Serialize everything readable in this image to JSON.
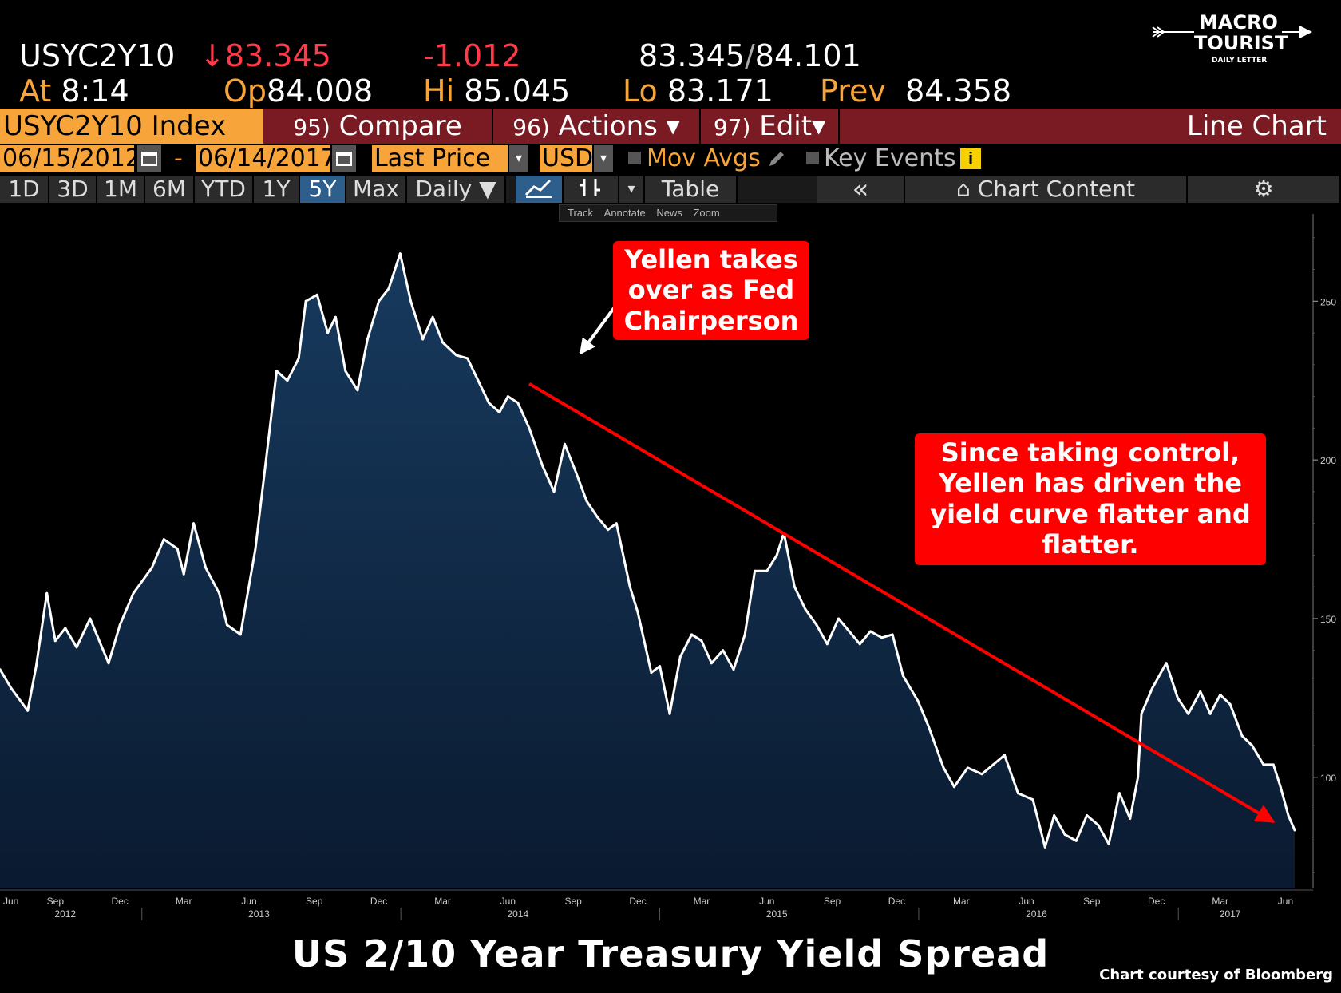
{
  "header": {
    "ticker": "USYC2Y10",
    "last_arrow": "↓",
    "last": "83.345",
    "change": "-1.012",
    "bid": "83.345",
    "ask": "84.101",
    "at_label": "At",
    "time": "8:14",
    "open_label": "Op",
    "open": "84.008",
    "high_label": "Hi",
    "high": "85.045",
    "low_label": "Lo",
    "low": "83.171",
    "prev_label": "Prev",
    "prev": "84.358"
  },
  "logo": {
    "line1": "MACRO",
    "line2": "TOURIST",
    "line3": "DAILY LETTER"
  },
  "command_bar": {
    "index": "USYC2Y10 Index",
    "compare_num": "95)",
    "compare": "Compare",
    "actions_num": "96)",
    "actions": "Actions",
    "edit_num": "97)",
    "edit": "Edit",
    "chart_type": "Line Chart",
    "dropdown": "▾"
  },
  "date_bar": {
    "start": "06/15/2012",
    "dash": "-",
    "end": "06/14/2017",
    "field": "Last Price",
    "currency": "USD",
    "mov_avgs": "Mov Avgs",
    "key_events": "Key Events",
    "info": "i"
  },
  "range_bar": {
    "ranges": [
      "1D",
      "3D",
      "1M",
      "6M",
      "YTD",
      "1Y",
      "5Y",
      "Max"
    ],
    "active": "5Y",
    "period": "Daily ▼",
    "table": "Table",
    "collapse": "«",
    "chart_content": "Chart Content",
    "settings": "⚙"
  },
  "mini_toolbar": {
    "track": "Track",
    "annotate": "Annotate",
    "news": "News",
    "zoom": "Zoom"
  },
  "colors": {
    "bloomberg_orange": "#f7a43a",
    "bar_red": "#7a1a23",
    "area_fill_top": "#173a5e",
    "area_fill_bottom": "#0a1a30",
    "line": "#ffffff",
    "callout": "#ff0000",
    "trend_arrow": "#ff0000",
    "down_color": "#ff3b4a"
  },
  "annotations": {
    "callout1": [
      "Yellen takes",
      "over as Fed",
      "Chairperson"
    ],
    "callout2": [
      "Since taking control,",
      "Yellen has driven the",
      "yield curve flatter and",
      "flatter."
    ]
  },
  "title": "US 2/10 Year Treasury Yield Spread",
  "credit": "Chart courtesy of Bloomberg",
  "chart_data": {
    "type": "area",
    "series": [
      {
        "values": [
          [
            "2012-06-15",
            134
          ],
          [
            "2012-07-01",
            128
          ],
          [
            "2012-07-24",
            121
          ],
          [
            "2012-08-05",
            135
          ],
          [
            "2012-08-20",
            158
          ],
          [
            "2012-09-01",
            143
          ],
          [
            "2012-09-15",
            147
          ],
          [
            "2012-10-01",
            141
          ],
          [
            "2012-10-20",
            150
          ],
          [
            "2012-11-15",
            136
          ],
          [
            "2012-12-01",
            148
          ],
          [
            "2012-12-20",
            158
          ],
          [
            "2013-01-15",
            166
          ],
          [
            "2013-02-01",
            175
          ],
          [
            "2013-02-20",
            172
          ],
          [
            "2013-03-01",
            164
          ],
          [
            "2013-03-15",
            180
          ],
          [
            "2013-04-01",
            166
          ],
          [
            "2013-04-20",
            158
          ],
          [
            "2013-05-01",
            148
          ],
          [
            "2013-05-20",
            145
          ],
          [
            "2013-06-10",
            172
          ],
          [
            "2013-06-25",
            200
          ],
          [
            "2013-07-10",
            228
          ],
          [
            "2013-07-25",
            225
          ],
          [
            "2013-08-10",
            232
          ],
          [
            "2013-08-20",
            250
          ],
          [
            "2013-09-05",
            252
          ],
          [
            "2013-09-20",
            240
          ],
          [
            "2013-10-01",
            245
          ],
          [
            "2013-10-15",
            228
          ],
          [
            "2013-11-01",
            222
          ],
          [
            "2013-11-15",
            238
          ],
          [
            "2013-12-01",
            250
          ],
          [
            "2013-12-15",
            254
          ],
          [
            "2013-12-31",
            265
          ],
          [
            "2014-01-15",
            250
          ],
          [
            "2014-02-01",
            238
          ],
          [
            "2014-02-15",
            245
          ],
          [
            "2014-03-01",
            237
          ],
          [
            "2014-03-20",
            233
          ],
          [
            "2014-04-05",
            232
          ],
          [
            "2014-04-20",
            225
          ],
          [
            "2014-05-05",
            218
          ],
          [
            "2014-05-20",
            215
          ],
          [
            "2014-06-01",
            220
          ],
          [
            "2014-06-15",
            218
          ],
          [
            "2014-07-01",
            210
          ],
          [
            "2014-07-20",
            198
          ],
          [
            "2014-08-05",
            190
          ],
          [
            "2014-08-20",
            205
          ],
          [
            "2014-09-05",
            196
          ],
          [
            "2014-09-20",
            187
          ],
          [
            "2014-10-05",
            182
          ],
          [
            "2014-10-20",
            178
          ],
          [
            "2014-11-01",
            180
          ],
          [
            "2014-11-20",
            160
          ],
          [
            "2014-12-01",
            152
          ],
          [
            "2014-12-20",
            133
          ],
          [
            "2015-01-01",
            135
          ],
          [
            "2015-01-15",
            120
          ],
          [
            "2015-01-30",
            138
          ],
          [
            "2015-02-15",
            145
          ],
          [
            "2015-03-01",
            143
          ],
          [
            "2015-03-15",
            136
          ],
          [
            "2015-03-31",
            140
          ],
          [
            "2015-04-15",
            134
          ],
          [
            "2015-05-01",
            145
          ],
          [
            "2015-05-15",
            165
          ],
          [
            "2015-06-01",
            165
          ],
          [
            "2015-06-15",
            170
          ],
          [
            "2015-06-25",
            177
          ],
          [
            "2015-07-10",
            160
          ],
          [
            "2015-07-25",
            153
          ],
          [
            "2015-08-10",
            148
          ],
          [
            "2015-08-25",
            142
          ],
          [
            "2015-09-10",
            150
          ],
          [
            "2015-09-25",
            146
          ],
          [
            "2015-10-10",
            142
          ],
          [
            "2015-10-25",
            146
          ],
          [
            "2015-11-10",
            144
          ],
          [
            "2015-11-25",
            145
          ],
          [
            "2015-12-10",
            132
          ],
          [
            "2015-12-31",
            124
          ],
          [
            "2016-01-15",
            116
          ],
          [
            "2016-02-05",
            103
          ],
          [
            "2016-02-20",
            97
          ],
          [
            "2016-03-10",
            103
          ],
          [
            "2016-03-30",
            101
          ],
          [
            "2016-04-15",
            104
          ],
          [
            "2016-05-01",
            107
          ],
          [
            "2016-05-20",
            95
          ],
          [
            "2016-06-10",
            93
          ],
          [
            "2016-06-27",
            78
          ],
          [
            "2016-07-10",
            88
          ],
          [
            "2016-07-25",
            82
          ],
          [
            "2016-08-10",
            80
          ],
          [
            "2016-08-25",
            88
          ],
          [
            "2016-09-10",
            85
          ],
          [
            "2016-09-25",
            79
          ],
          [
            "2016-10-10",
            95
          ],
          [
            "2016-10-25",
            87
          ],
          [
            "2016-11-05",
            100
          ],
          [
            "2016-11-10",
            120
          ],
          [
            "2016-11-25",
            128
          ],
          [
            "2016-12-15",
            136
          ],
          [
            "2016-12-31",
            125
          ],
          [
            "2017-01-15",
            120
          ],
          [
            "2017-02-01",
            127
          ],
          [
            "2017-02-15",
            120
          ],
          [
            "2017-03-01",
            126
          ],
          [
            "2017-03-15",
            123
          ],
          [
            "2017-04-01",
            113
          ],
          [
            "2017-04-15",
            110
          ],
          [
            "2017-05-01",
            104
          ],
          [
            "2017-05-15",
            104
          ],
          [
            "2017-05-25",
            97
          ],
          [
            "2017-06-05",
            88
          ],
          [
            "2017-06-14",
            83.345
          ]
        ]
      }
    ],
    "xlim": [
      "2012-06-15",
      "2017-06-14"
    ],
    "ylim": [
      65,
      280
    ],
    "y_ticks": [
      100,
      150,
      200,
      250
    ],
    "x_month_ticks": [
      "Jun",
      "Sep",
      "Dec",
      "Mar",
      "Jun",
      "Sep",
      "Dec",
      "Mar",
      "Jun",
      "Sep",
      "Dec",
      "Mar",
      "Jun",
      "Sep",
      "Dec",
      "Mar",
      "Jun",
      "Sep",
      "Dec",
      "Mar",
      "Jun"
    ],
    "x_tick_dates": [
      "2012-06-15",
      "2012-09-01",
      "2012-12-01",
      "2013-03-01",
      "2013-06-01",
      "2013-09-01",
      "2013-12-01",
      "2014-03-01",
      "2014-06-01",
      "2014-09-01",
      "2014-12-01",
      "2015-03-01",
      "2015-06-01",
      "2015-09-01",
      "2015-12-01",
      "2016-03-01",
      "2016-06-01",
      "2016-09-01",
      "2016-12-01",
      "2017-03-01",
      "2017-06-01"
    ],
    "x_year_labels": [
      "2012",
      "2013",
      "2014",
      "2015",
      "2016",
      "2017"
    ],
    "year_label_dates": [
      "2012-09-15",
      "2013-06-15",
      "2014-06-15",
      "2015-06-15",
      "2016-06-15",
      "2017-03-15"
    ],
    "trend_arrow": {
      "from": [
        "2014-07-01",
        224
      ],
      "to": [
        "2017-05-15",
        86
      ]
    },
    "pointer_arrow": {
      "from": [
        "2014-06-01",
        250
      ],
      "to": [
        "2014-04-01",
        232
      ]
    },
    "grid": false
  }
}
